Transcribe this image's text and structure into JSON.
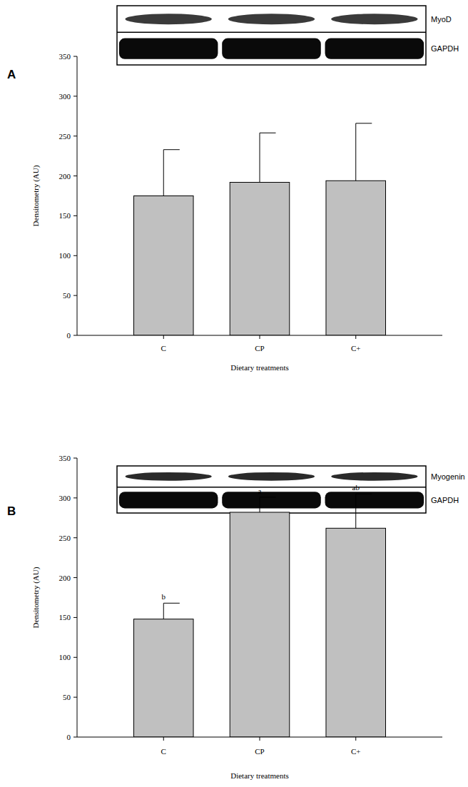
{
  "chart_data": [
    {
      "type": "bar",
      "panel_label": "A",
      "blot_labels": [
        "MyoD",
        "GAPDH"
      ],
      "categories": [
        "C",
        "CP",
        "C+"
      ],
      "values": [
        175,
        192,
        194
      ],
      "errors": [
        58,
        62,
        72
      ],
      "color": "#c0c0c0",
      "x_label": "Dietary treatments",
      "y_label": "Densitometry (AU)",
      "ylim": [
        0,
        350
      ],
      "yticks": [
        0,
        50,
        100,
        150,
        200,
        250,
        300,
        350
      ],
      "grid": false
    },
    {
      "type": "bar",
      "panel_label": "B",
      "blot_labels": [
        "Myogenin",
        "GAPDH"
      ],
      "categories": [
        "C",
        "CP",
        "C+"
      ],
      "values": [
        148,
        282,
        262
      ],
      "errors": [
        20,
        19,
        43
      ],
      "annotations": [
        "b",
        "a",
        "ab"
      ],
      "color": "#c0c0c0",
      "x_label": "Dietary treatments",
      "y_label": "Densitometry (AU)",
      "ylim": [
        0,
        350
      ],
      "yticks": [
        0,
        50,
        100,
        150,
        200,
        250,
        300,
        350
      ],
      "grid": false
    }
  ]
}
